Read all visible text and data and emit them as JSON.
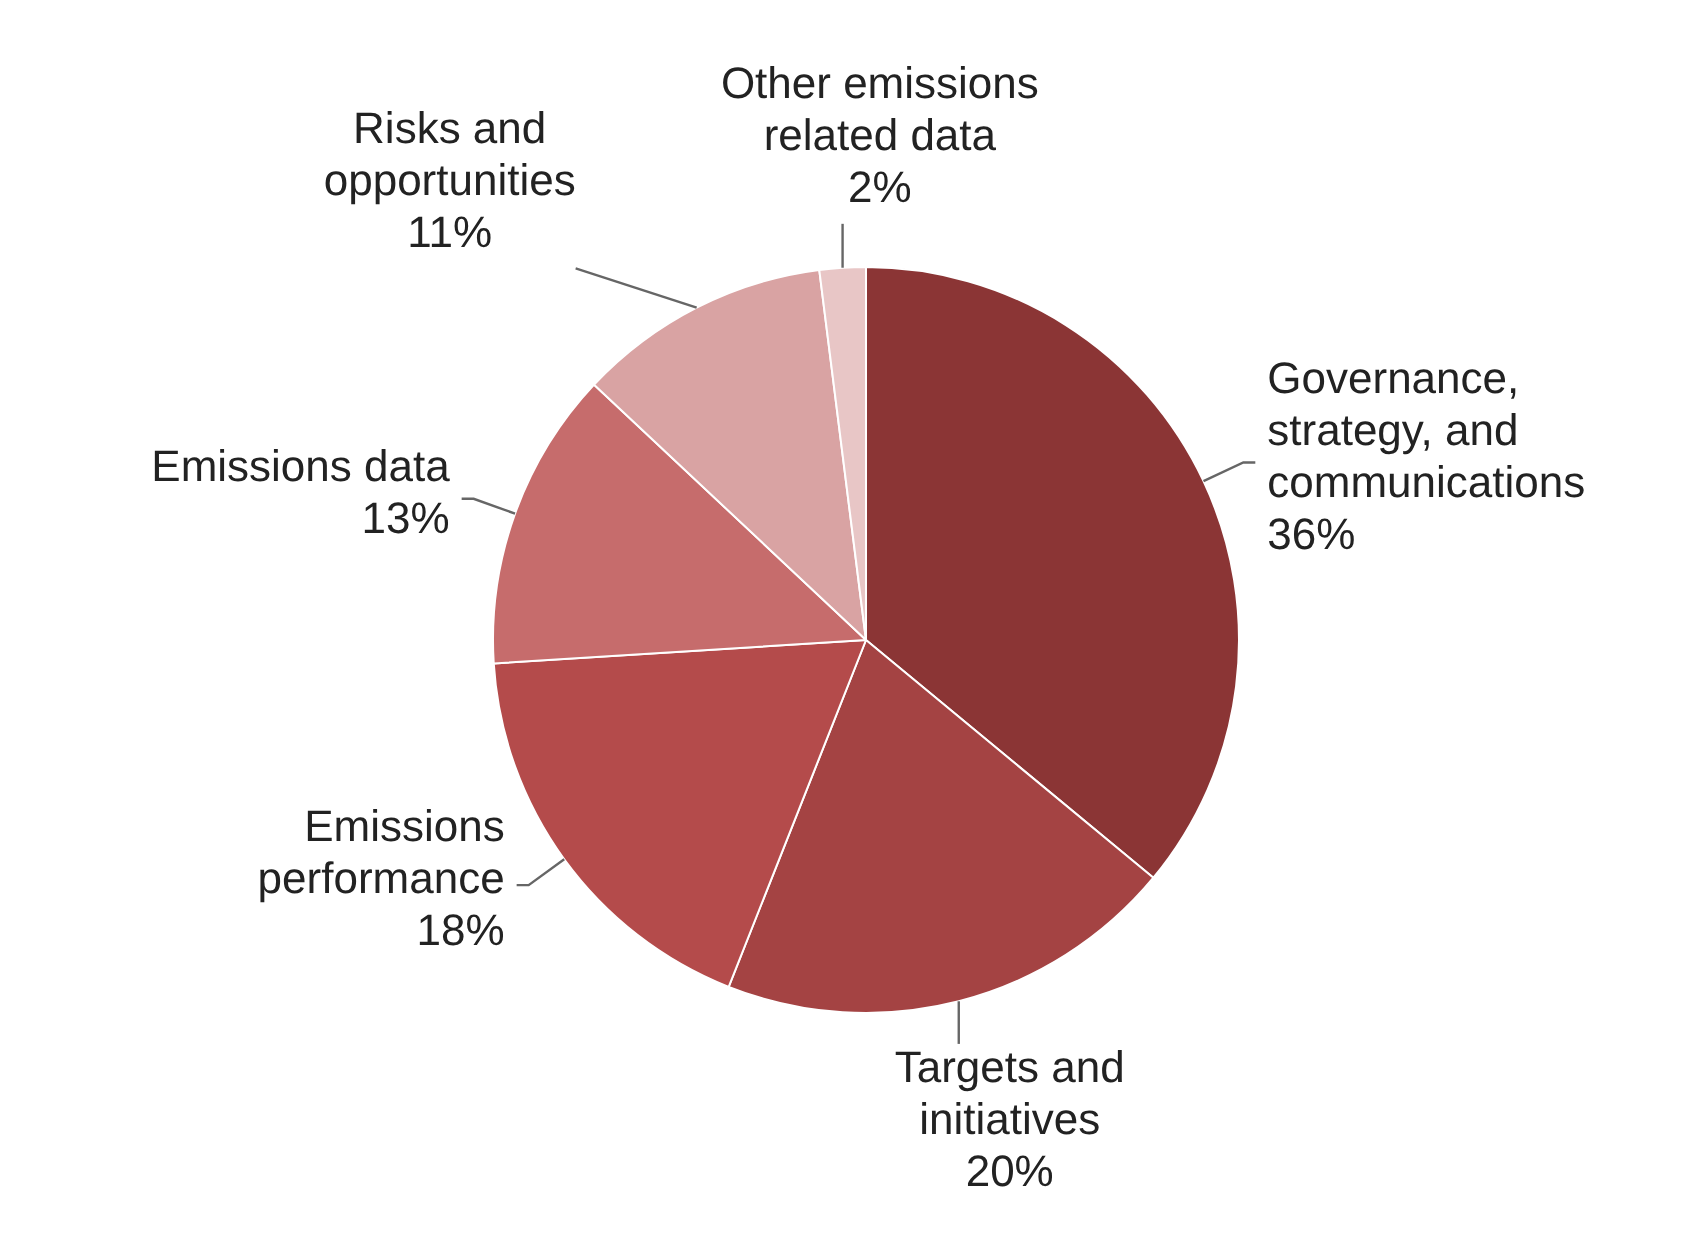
{
  "chart_data": {
    "type": "pie",
    "categories": [
      "Governance, strategy, and communications",
      "Targets and initiatives",
      "Emissions performance",
      "Emissions data",
      "Risks and opportunities",
      "Other emissions related data"
    ],
    "values": [
      36,
      20,
      18,
      13,
      11,
      2
    ],
    "value_labels": [
      "36%",
      "20%",
      "18%",
      "13%",
      "11%",
      "2%"
    ],
    "colors": [
      "#8b3535",
      "#a44343",
      "#b44b4b",
      "#c66c6c",
      "#d9a3a3",
      "#e8c6c6"
    ],
    "legend": false
  }
}
